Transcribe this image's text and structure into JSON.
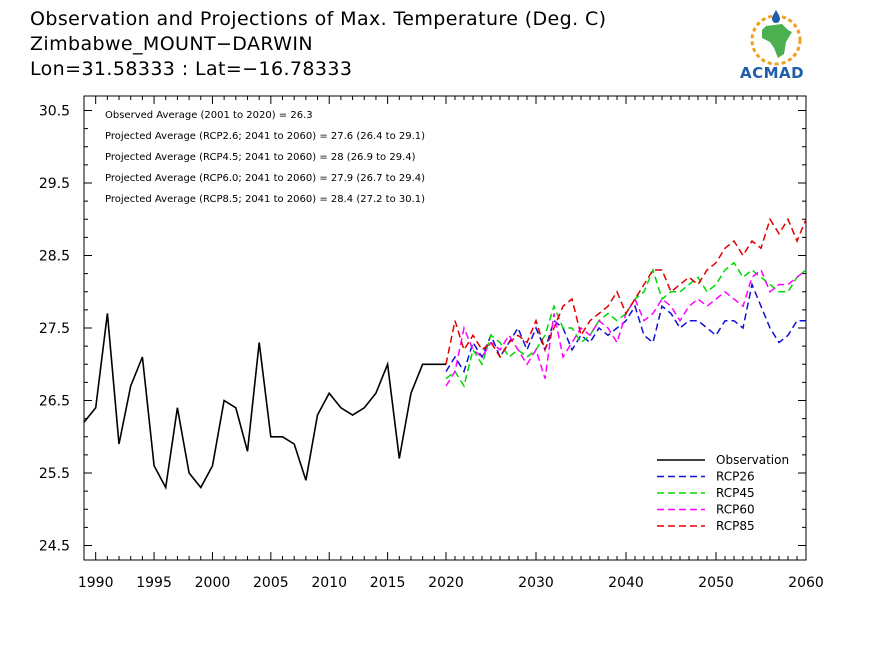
{
  "header": {
    "line1": "Observation and Projections of Max. Temperature (Deg. C)",
    "line2": "Zimbabwe_MOUNT−DARWIN",
    "line3": "Lon=31.58333 : Lat=−16.78333"
  },
  "logo": {
    "text": "ACMAD",
    "icon": "africa-map-icon",
    "colors": {
      "blue": "#1f5da8",
      "orange": "#f0a020",
      "green": "#4caf50"
    }
  },
  "annotations": [
    "Observed Average (2001 to 2020) = 26.3",
    "Projected Average (RCP2.6; 2041 to 2060) = 27.6 (26.4 to 29.1)",
    "Projected Average (RCP4.5; 2041 to 2060) = 28 (26.9 to 29.4)",
    "Projected Average (RCP6.0; 2041 to 2060) = 27.9 (26.7 to 29.4)",
    "Projected Average (RCP8.5; 2041 to 2060) = 28.4 (27.2 to 30.1)"
  ],
  "chart_data": {
    "type": "line",
    "xlim": [
      1989,
      2060
    ],
    "ylim": [
      24.3,
      30.7
    ],
    "xticks": [
      1990,
      1995,
      2000,
      2005,
      2010,
      2015,
      2020,
      2030,
      2040,
      2050,
      2060
    ],
    "xtick_labels": [
      "1990",
      "1995",
      "2000",
      "2005",
      "2010",
      "2015",
      "2020",
      "2030",
      "2040",
      "2050",
      "2060"
    ],
    "yticks": [
      24.5,
      25.5,
      26.5,
      27.5,
      28.5,
      29.5,
      30.5
    ],
    "ytick_labels": [
      "24.5",
      "25.5",
      "26.5",
      "27.5",
      "28.5",
      "29.5",
      "30.5"
    ],
    "legend_position": "bottom-right",
    "series": [
      {
        "name": "Observation",
        "color": "#000000",
        "dashed": false,
        "x": [
          1989,
          1990,
          1991,
          1992,
          1993,
          1994,
          1995,
          1996,
          1997,
          1998,
          1999,
          2000,
          2001,
          2002,
          2003,
          2004,
          2005,
          2006,
          2007,
          2008,
          2009,
          2010,
          2011,
          2012,
          2013,
          2014,
          2015,
          2016,
          2017,
          2018,
          2019,
          2020
        ],
        "y": [
          26.2,
          26.4,
          27.7,
          25.9,
          26.7,
          27.1,
          25.6,
          25.3,
          26.4,
          25.5,
          25.3,
          25.6,
          26.5,
          26.4,
          25.8,
          27.3,
          26.0,
          26.0,
          25.9,
          25.4,
          26.3,
          26.6,
          26.4,
          26.3,
          26.4,
          26.6,
          27.0,
          25.7,
          26.6,
          27.0,
          27.0,
          27.0
        ]
      },
      {
        "name": "RCP26",
        "color": "#1010d8",
        "dashed": true,
        "x": [
          2020,
          2021,
          2022,
          2023,
          2024,
          2025,
          2026,
          2027,
          2028,
          2029,
          2030,
          2031,
          2032,
          2033,
          2034,
          2035,
          2036,
          2037,
          2038,
          2039,
          2040,
          2041,
          2042,
          2043,
          2044,
          2045,
          2046,
          2047,
          2048,
          2049,
          2050,
          2051,
          2052,
          2053,
          2054,
          2055,
          2056,
          2057,
          2058,
          2059,
          2060
        ],
        "y": [
          26.9,
          27.1,
          26.9,
          27.3,
          27.1,
          27.4,
          27.1,
          27.3,
          27.5,
          27.2,
          27.5,
          27.2,
          27.6,
          27.5,
          27.2,
          27.4,
          27.3,
          27.5,
          27.4,
          27.5,
          27.6,
          27.8,
          27.4,
          27.3,
          27.8,
          27.7,
          27.5,
          27.6,
          27.6,
          27.5,
          27.4,
          27.6,
          27.6,
          27.5,
          28.1,
          27.8,
          27.5,
          27.3,
          27.4,
          27.6,
          27.6
        ]
      },
      {
        "name": "RCP45",
        "color": "#00d800",
        "dashed": true,
        "x": [
          2020,
          2021,
          2022,
          2023,
          2024,
          2025,
          2026,
          2027,
          2028,
          2029,
          2030,
          2031,
          2032,
          2033,
          2034,
          2035,
          2036,
          2037,
          2038,
          2039,
          2040,
          2041,
          2042,
          2043,
          2044,
          2045,
          2046,
          2047,
          2048,
          2049,
          2050,
          2051,
          2052,
          2053,
          2054,
          2055,
          2056,
          2057,
          2058,
          2059,
          2060
        ],
        "y": [
          26.8,
          26.9,
          26.7,
          27.2,
          27.0,
          27.4,
          27.3,
          27.1,
          27.2,
          27.1,
          27.2,
          27.4,
          27.8,
          27.5,
          27.5,
          27.3,
          27.4,
          27.6,
          27.7,
          27.6,
          27.7,
          27.9,
          28.0,
          28.3,
          27.9,
          28.0,
          28.0,
          28.1,
          28.2,
          28.0,
          28.1,
          28.3,
          28.4,
          28.2,
          28.3,
          28.2,
          28.1,
          28.0,
          28.0,
          28.2,
          28.3
        ]
      },
      {
        "name": "RCP60",
        "color": "#ff00ff",
        "dashed": true,
        "x": [
          2020,
          2021,
          2022,
          2023,
          2024,
          2025,
          2026,
          2027,
          2028,
          2029,
          2030,
          2031,
          2032,
          2033,
          2034,
          2035,
          2036,
          2037,
          2038,
          2039,
          2040,
          2041,
          2042,
          2043,
          2044,
          2045,
          2046,
          2047,
          2048,
          2049,
          2050,
          2051,
          2052,
          2053,
          2054,
          2055,
          2056,
          2057,
          2058,
          2059,
          2060
        ],
        "y": [
          26.7,
          26.9,
          27.5,
          27.2,
          27.1,
          27.3,
          27.2,
          27.4,
          27.2,
          27.0,
          27.2,
          26.8,
          27.7,
          27.1,
          27.3,
          27.5,
          27.4,
          27.6,
          27.5,
          27.3,
          27.7,
          27.9,
          27.6,
          27.7,
          27.9,
          27.8,
          27.6,
          27.8,
          27.9,
          27.8,
          27.9,
          28.0,
          27.9,
          27.8,
          28.2,
          28.3,
          28.0,
          28.1,
          28.1,
          28.2,
          28.3
        ]
      },
      {
        "name": "RCP85",
        "color": "#e00000",
        "dashed": true,
        "x": [
          2020,
          2021,
          2022,
          2023,
          2024,
          2025,
          2026,
          2027,
          2028,
          2029,
          2030,
          2031,
          2032,
          2033,
          2034,
          2035,
          2036,
          2037,
          2038,
          2039,
          2040,
          2041,
          2042,
          2043,
          2044,
          2045,
          2046,
          2047,
          2048,
          2049,
          2050,
          2051,
          2052,
          2053,
          2054,
          2055,
          2056,
          2057,
          2058,
          2059,
          2060
        ],
        "y": [
          27.0,
          27.6,
          27.2,
          27.4,
          27.2,
          27.3,
          27.1,
          27.3,
          27.4,
          27.3,
          27.6,
          27.2,
          27.5,
          27.8,
          27.9,
          27.4,
          27.6,
          27.7,
          27.8,
          28.0,
          27.7,
          27.9,
          28.1,
          28.3,
          28.3,
          28.0,
          28.1,
          28.2,
          28.1,
          28.3,
          28.4,
          28.6,
          28.7,
          28.5,
          28.7,
          28.6,
          29.0,
          28.8,
          29.0,
          28.7,
          29.0
        ]
      }
    ]
  }
}
